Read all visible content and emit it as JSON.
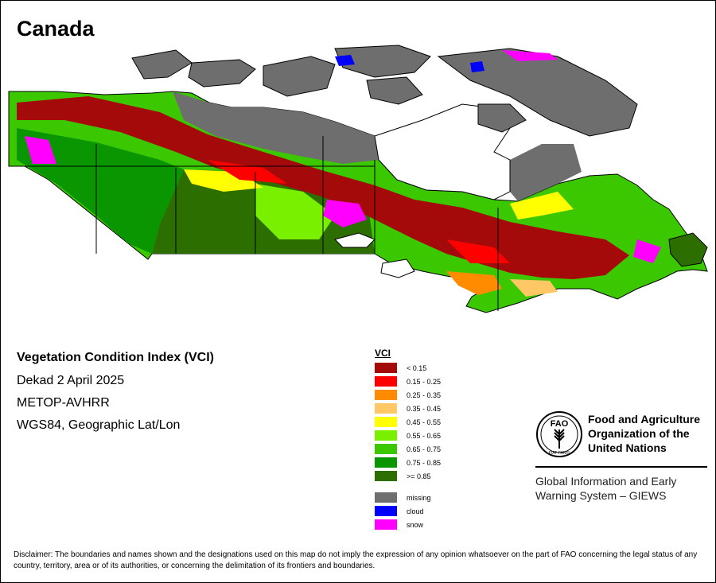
{
  "title": "Canada",
  "info": {
    "heading": "Vegetation Condition Index (VCI)",
    "lines": [
      "Dekad 2 April 2025",
      "METOP-AVHRR",
      "WGS84, Geographic Lat/Lon"
    ]
  },
  "legend": {
    "title": "VCI",
    "classes": [
      {
        "label": "< 0.15",
        "color": "#a50a0a"
      },
      {
        "label": "0.15 - 0.25",
        "color": "#ff0000"
      },
      {
        "label": "0.25 - 0.35",
        "color": "#ff8c00"
      },
      {
        "label": "0.35 - 0.45",
        "color": "#ffc864"
      },
      {
        "label": "0.45 - 0.55",
        "color": "#ffff00"
      },
      {
        "label": "0.55 - 0.65",
        "color": "#78f000"
      },
      {
        "label": "0.65 - 0.75",
        "color": "#3cc800"
      },
      {
        "label": "0.75 - 0.85",
        "color": "#0a9600"
      },
      {
        "label": ">= 0.85",
        "color": "#2d6e00"
      }
    ],
    "special": [
      {
        "label": "missing",
        "color": "#6e6e6e"
      },
      {
        "label": "cloud",
        "color": "#0000ff"
      },
      {
        "label": "snow",
        "color": "#ff00ff"
      }
    ]
  },
  "fao": {
    "name_lines": [
      "Food and Agriculture",
      "Organization of the",
      "United Nations"
    ],
    "giews_lines": [
      "Global Information and Early",
      "Warning System – GIEWS"
    ],
    "logo_letters": "FAO",
    "logo_motto": "FIAT PANIS"
  },
  "disclaimer": "Disclaimer: The boundaries and names shown and the designations used on this map do not imply the expression of any opinion whatsoever on the part of FAO concerning the legal status of any country, territory, area or of its authorities, or concerning the delimitation of its frontiers and boundaries."
}
